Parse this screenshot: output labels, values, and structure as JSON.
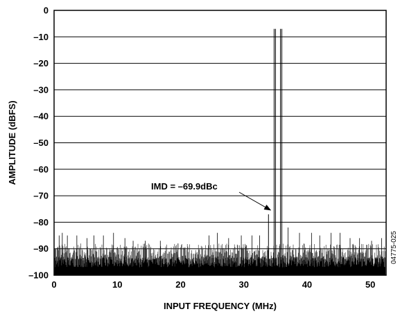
{
  "chart_data": {
    "type": "line",
    "title": "",
    "xlabel": "INPUT FREQUENCY (MHz)",
    "ylabel": "AMPLITUDE (dBFS)",
    "xlim": [
      0,
      52.5
    ],
    "ylim": [
      -100,
      0
    ],
    "grid": "horizontal",
    "x_ticks": [
      0,
      10,
      20,
      30,
      40,
      50
    ],
    "y_ticks": [
      0,
      -10,
      -20,
      -30,
      -40,
      -50,
      -60,
      -70,
      -80,
      -90,
      -100
    ],
    "x_tick_labels": [
      "0",
      "10",
      "20",
      "30",
      "40",
      "50"
    ],
    "y_tick_labels": [
      "0",
      "–10",
      "–20",
      "–30",
      "–40",
      "–50",
      "–60",
      "–70",
      "–80",
      "–90",
      "–100"
    ],
    "noise_floor_dbfs": -90,
    "tones": [
      {
        "x": 34.9,
        "y": -7
      },
      {
        "x": 35.9,
        "y": -7
      }
    ],
    "imd_product": {
      "x": 33.9,
      "y": -77
    },
    "spurs": [
      {
        "x": 0.8,
        "y": -85
      },
      {
        "x": 1.3,
        "y": -84
      },
      {
        "x": 2.1,
        "y": -85
      },
      {
        "x": 3.6,
        "y": -85
      },
      {
        "x": 5.2,
        "y": -86
      },
      {
        "x": 6.3,
        "y": -85
      },
      {
        "x": 7.8,
        "y": -85
      },
      {
        "x": 9.4,
        "y": -84
      },
      {
        "x": 11.2,
        "y": -86
      },
      {
        "x": 12.5,
        "y": -87
      },
      {
        "x": 14.4,
        "y": -87
      },
      {
        "x": 16.8,
        "y": -87
      },
      {
        "x": 19.6,
        "y": -88
      },
      {
        "x": 24.5,
        "y": -85
      },
      {
        "x": 25.8,
        "y": -84
      },
      {
        "x": 27.6,
        "y": -86
      },
      {
        "x": 29.6,
        "y": -85
      },
      {
        "x": 31.3,
        "y": -85
      },
      {
        "x": 32.5,
        "y": -85
      },
      {
        "x": 37.0,
        "y": -82
      },
      {
        "x": 38.8,
        "y": -84
      },
      {
        "x": 40.7,
        "y": -84
      },
      {
        "x": 42.0,
        "y": -85
      },
      {
        "x": 43.8,
        "y": -84
      },
      {
        "x": 45.2,
        "y": -84
      },
      {
        "x": 46.8,
        "y": -86
      },
      {
        "x": 48.3,
        "y": -86
      },
      {
        "x": 50.2,
        "y": -87
      },
      {
        "x": 51.8,
        "y": -86
      }
    ],
    "annotation": {
      "text": "IMD = –69.9dBc",
      "target_x": 33.9,
      "target_y": -77
    }
  },
  "figure_id": "04775-025"
}
